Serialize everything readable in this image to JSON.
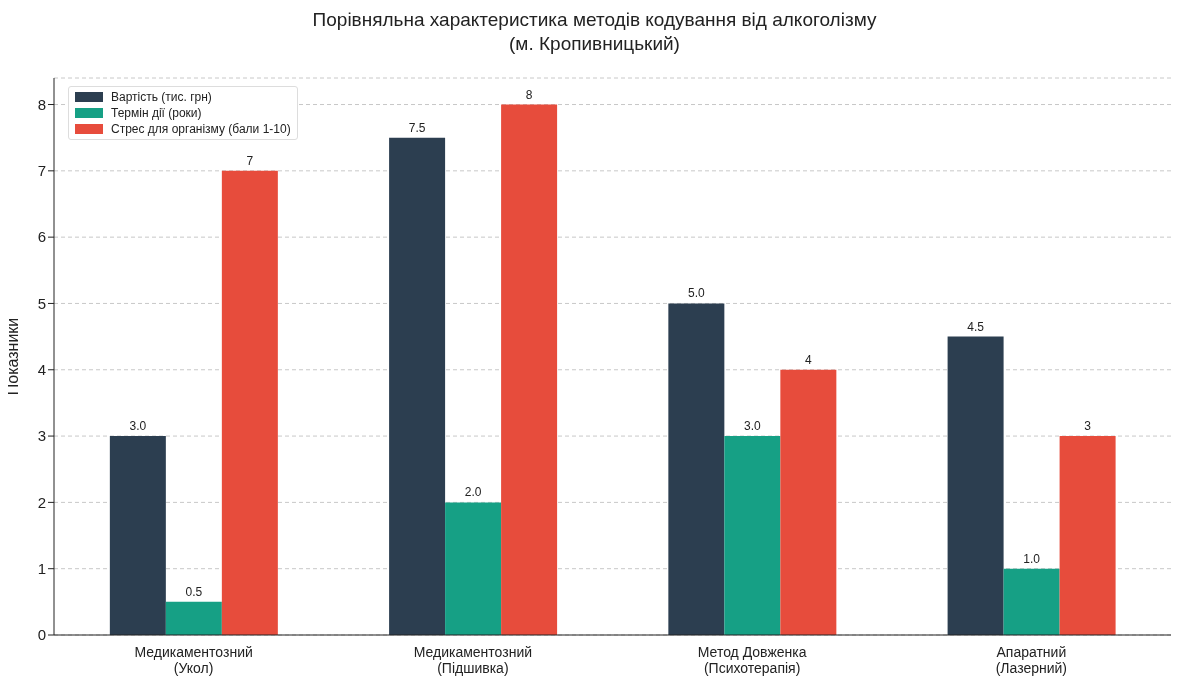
{
  "chart_data": {
    "type": "bar",
    "title": "Порівняльна характеристика методів кодування від алкоголізму\n(м. Кропивницький)",
    "ylabel": "Показники",
    "categories": [
      "Медикаментозний\n(Укол)",
      "Медикаментозний\n(Підшивка)",
      "Метод Довженка\n(Психотерапія)",
      "Апаратний\n(Лазерний)"
    ],
    "series": [
      {
        "name": "Вартість (тис. грн)",
        "color": "#2c3e50",
        "values": [
          3.0,
          7.5,
          5.0,
          4.5
        ],
        "value_labels": [
          "3.0",
          "7.5",
          "5.0",
          "4.5"
        ]
      },
      {
        "name": "Термін дії (роки)",
        "color": "#16a085",
        "values": [
          0.5,
          2.0,
          3.0,
          1.0
        ],
        "value_labels": [
          "0.5",
          "2.0",
          "3.0",
          "1.0"
        ]
      },
      {
        "name": "Стрес для організму (бали 1-10)",
        "color": "#e74c3c",
        "values": [
          7,
          8,
          4,
          3
        ],
        "value_labels": [
          "7",
          "8",
          "4",
          "3"
        ]
      }
    ],
    "ylim": [
      0,
      8.4
    ],
    "yticks": [
      0,
      1,
      2,
      3,
      4,
      5,
      6,
      7,
      8
    ],
    "grid": "y",
    "legend": "top left"
  }
}
